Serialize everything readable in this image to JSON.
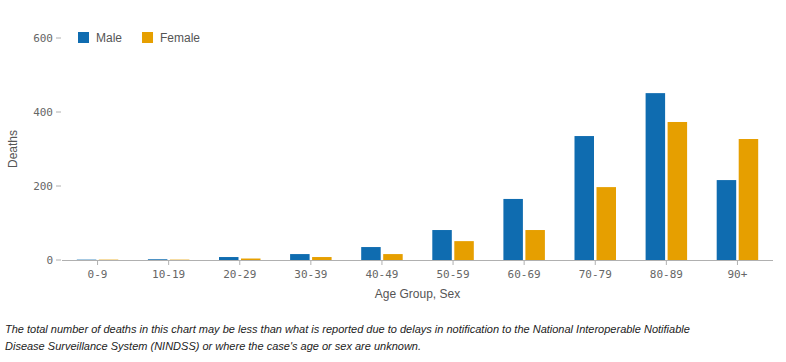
{
  "chart_data": {
    "type": "bar",
    "x_label": "Age Group, Sex",
    "y_label": "Deaths",
    "categories": [
      "0-9",
      "10-19",
      "20-29",
      "30-39",
      "40-49",
      "50-59",
      "60-69",
      "70-79",
      "80-89",
      "90+"
    ],
    "series": [
      {
        "name": "Male",
        "color": "#0f6cb0",
        "values": [
          1,
          2,
          8,
          16,
          35,
          81,
          165,
          335,
          451,
          216
        ]
      },
      {
        "name": "Female",
        "color": "#e69f00",
        "values": [
          1,
          1,
          4,
          8,
          16,
          51,
          81,
          197,
          373,
          327
        ]
      }
    ],
    "ylim": [
      0,
      600
    ],
    "yticks": [
      0,
      200,
      400,
      600
    ],
    "grid": false,
    "legend": "top-left",
    "annotations": [
      "The total number of deaths in this chart may be less than what is reported due to delays in notification to the National Interoperable Notifiable",
      "Disease Surveillance System (NINDSS) or where the case's age or sex are unknown."
    ]
  }
}
